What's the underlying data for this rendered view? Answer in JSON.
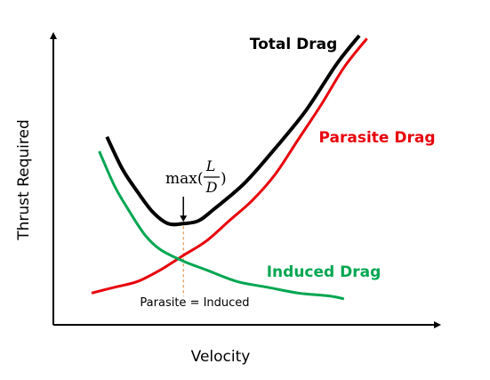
{
  "colors": {
    "total": "#000000",
    "parasite": "#e8000b",
    "induced": "#00a651",
    "guide": "#e07b20",
    "axis": "#000000"
  },
  "chart_data": {
    "type": "line",
    "title": "",
    "xlabel": "Velocity",
    "ylabel": "Thrust Required",
    "grid": false,
    "axis_ticks": false,
    "x_range": [
      0,
      1
    ],
    "y_range": [
      0,
      1
    ],
    "series": [
      {
        "name": "Total Drag",
        "color_key": "total",
        "points": [
          [
            0.14,
            0.65
          ],
          [
            0.18,
            0.54
          ],
          [
            0.22,
            0.46
          ],
          [
            0.26,
            0.39
          ],
          [
            0.3,
            0.35
          ],
          [
            0.34,
            0.35
          ],
          [
            0.38,
            0.36
          ],
          [
            0.42,
            0.4
          ],
          [
            0.5,
            0.49
          ],
          [
            0.58,
            0.61
          ],
          [
            0.66,
            0.74
          ],
          [
            0.74,
            0.9
          ],
          [
            0.8,
            1.0
          ]
        ]
      },
      {
        "name": "Parasite Drag",
        "color_key": "parasite",
        "points": [
          [
            0.1,
            0.11
          ],
          [
            0.16,
            0.13
          ],
          [
            0.22,
            0.15
          ],
          [
            0.28,
            0.19
          ],
          [
            0.34,
            0.24
          ],
          [
            0.4,
            0.29
          ],
          [
            0.46,
            0.36
          ],
          [
            0.52,
            0.43
          ],
          [
            0.58,
            0.52
          ],
          [
            0.64,
            0.64
          ],
          [
            0.7,
            0.76
          ],
          [
            0.76,
            0.89
          ],
          [
            0.82,
            0.99
          ]
        ]
      },
      {
        "name": "Induced Drag",
        "color_key": "induced",
        "points": [
          [
            0.12,
            0.6
          ],
          [
            0.16,
            0.48
          ],
          [
            0.2,
            0.39
          ],
          [
            0.24,
            0.31
          ],
          [
            0.28,
            0.26
          ],
          [
            0.34,
            0.22
          ],
          [
            0.4,
            0.19
          ],
          [
            0.48,
            0.15
          ],
          [
            0.56,
            0.13
          ],
          [
            0.64,
            0.11
          ],
          [
            0.72,
            0.1
          ],
          [
            0.76,
            0.09
          ]
        ]
      }
    ],
    "annotations": {
      "max_ld": {
        "prefix": "max(",
        "num": "L",
        "den": "D",
        "suffix": ")",
        "x": 0.34,
        "y": 0.35
      },
      "crossover": {
        "text": "Parasite = Induced",
        "x": 0.34,
        "y": 0.24
      }
    }
  }
}
